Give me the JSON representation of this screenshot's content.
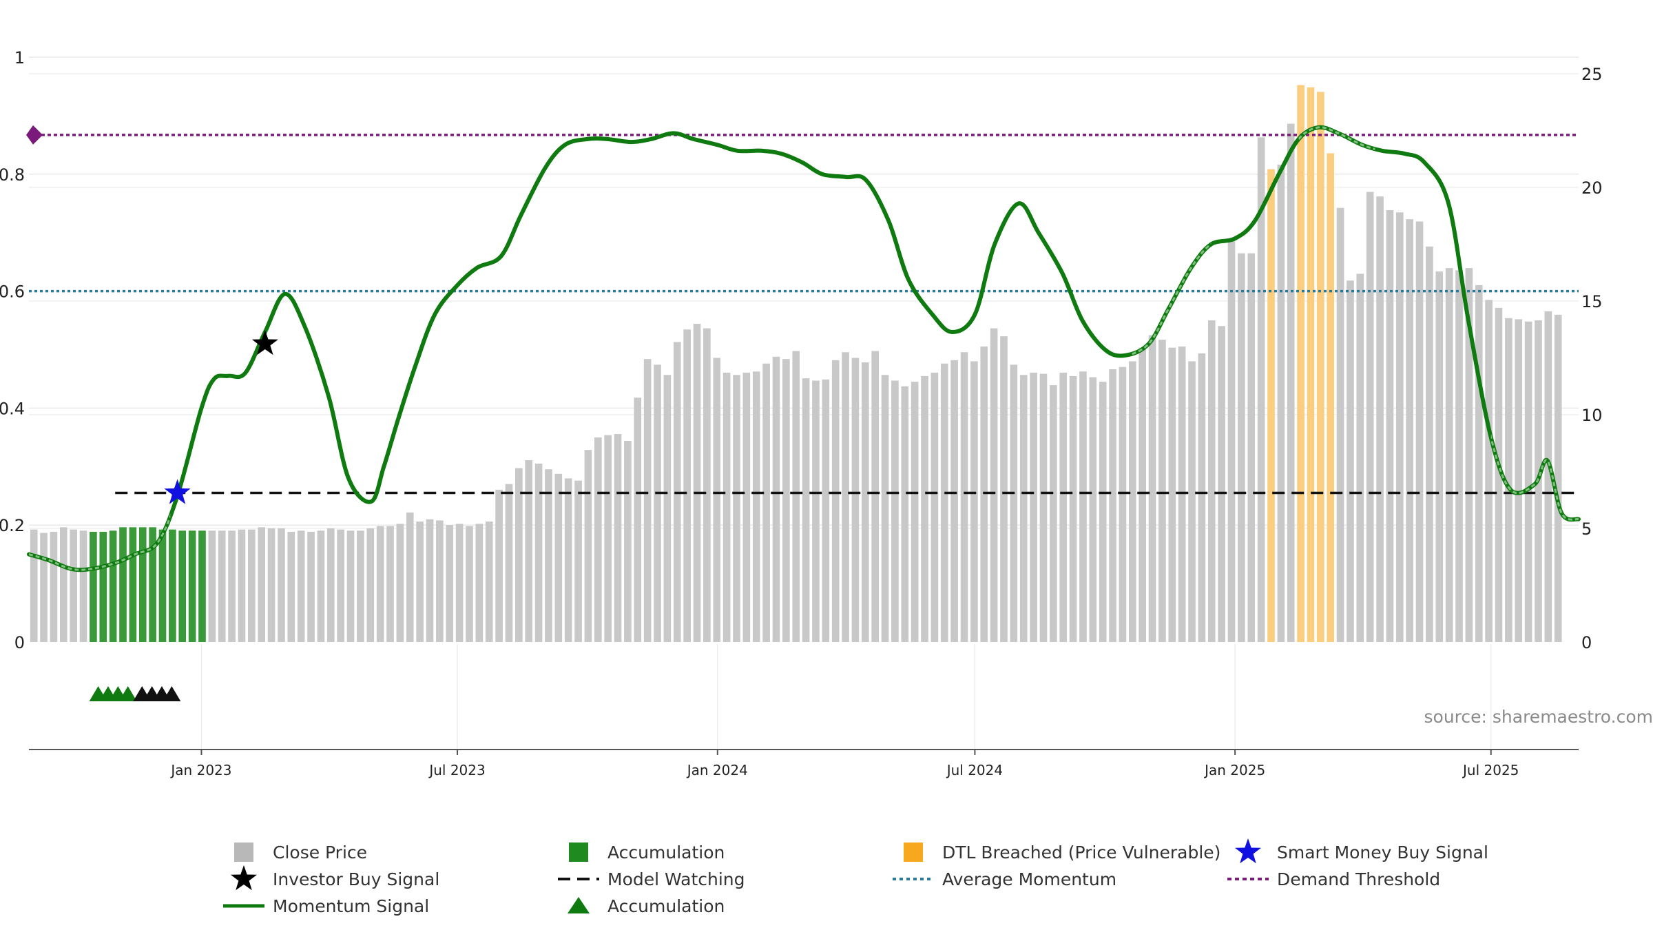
{
  "source": "source: sharemaestro.com",
  "colors": {
    "close": "#c8c8c8",
    "accumulation": "#3a9a3a",
    "dtl": "#fbcd7e",
    "momentum": "#0f7a0f",
    "average": "#2a7a9a",
    "demand": "#7a1a7a",
    "watching": "#111111",
    "smart_money": "#1010e0",
    "investor": "#000000"
  },
  "legend": [
    {
      "id": "close",
      "label": "Close Price"
    },
    {
      "id": "accumulation",
      "label": "Accumulation"
    },
    {
      "id": "dtl",
      "label": "DTL Breached (Price Vulnerable)"
    },
    {
      "id": "smart_money",
      "label": "Smart Money Buy Signal"
    },
    {
      "id": "investor",
      "label": "Investor Buy Signal"
    },
    {
      "id": "watching",
      "label": "Model Watching"
    },
    {
      "id": "average",
      "label": "Average Momentum"
    },
    {
      "id": "demand",
      "label": "Demand Threshold"
    },
    {
      "id": "momentum",
      "label": "Momentum Signal"
    },
    {
      "id": "acc_tri",
      "label": "Accumulation"
    }
  ],
  "chart_data": {
    "type": "bar",
    "x_range": [
      "2022-09-01",
      "2025-09-01"
    ],
    "x_ticks": [
      {
        "label": "Jan 2023",
        "date": "2023-01-01"
      },
      {
        "label": "Jul 2023",
        "date": "2023-07-01"
      },
      {
        "label": "Jan 2024",
        "date": "2024-01-01"
      },
      {
        "label": "Jul 2024",
        "date": "2024-07-01"
      },
      {
        "label": "Jan 2025",
        "date": "2025-01-01"
      },
      {
        "label": "Jul 2025",
        "date": "2025-07-01"
      }
    ],
    "y_left": {
      "range": [
        0,
        1
      ],
      "ticks": [
        "0",
        "0.2",
        "0.4",
        "0.6",
        "0.8",
        "1"
      ],
      "tick_values": [
        0,
        0.2,
        0.4,
        0.6,
        0.8,
        1
      ]
    },
    "y_right": {
      "range": [
        0,
        25
      ],
      "ticks": [
        "0",
        "5",
        "10",
        "15",
        "20",
        "25"
      ],
      "tick_values": [
        0,
        5,
        10,
        15,
        20,
        25
      ]
    },
    "close_price": {
      "name": "Close Price",
      "start": "2022-09-01",
      "step_days": 7,
      "values": [
        4.95,
        4.8,
        4.85,
        5.05,
        4.95,
        4.9,
        4.85,
        4.85,
        4.9,
        5.05,
        5.05,
        5.05,
        5.05,
        4.95,
        4.95,
        4.9,
        4.9,
        4.9,
        4.9,
        4.9,
        4.9,
        4.95,
        4.95,
        5.05,
        5.0,
        5.0,
        4.85,
        4.9,
        4.85,
        4.9,
        5.0,
        4.95,
        4.9,
        4.9,
        5.0,
        5.1,
        5.1,
        5.2,
        5.7,
        5.3,
        5.4,
        5.35,
        5.15,
        5.2,
        5.1,
        5.2,
        5.3,
        6.7,
        6.95,
        7.65,
        8.0,
        7.85,
        7.6,
        7.4,
        7.2,
        7.1,
        8.45,
        9.0,
        9.1,
        9.15,
        8.85,
        10.75,
        12.45,
        12.2,
        11.75,
        13.2,
        13.75,
        14.0,
        13.8,
        12.5,
        11.85,
        11.75,
        11.85,
        11.9,
        12.25,
        12.55,
        12.45,
        12.8,
        11.6,
        11.5,
        11.55,
        12.4,
        12.75,
        12.5,
        12.3,
        12.8,
        11.75,
        11.5,
        11.25,
        11.45,
        11.7,
        11.85,
        12.25,
        12.4,
        12.75,
        12.35,
        13.0,
        13.8,
        13.45,
        12.2,
        11.75,
        11.85,
        11.8,
        11.3,
        11.85,
        11.7,
        11.9,
        11.65,
        11.45,
        12.0,
        12.1,
        12.35,
        12.95,
        13.5,
        13.3,
        12.95,
        13.0,
        12.35,
        12.7,
        14.15,
        13.9,
        17.7,
        17.1,
        17.1,
        22.2,
        20.8,
        21.0,
        22.8,
        24.5,
        24.4,
        24.2,
        21.5,
        19.1,
        15.9,
        16.2,
        19.8,
        19.6,
        19.0,
        18.9,
        18.6,
        18.5,
        17.4,
        16.3,
        16.45,
        16.35,
        16.45,
        15.7,
        15.05,
        14.7,
        14.25,
        14.2,
        14.1,
        14.15,
        14.55,
        14.4
      ],
      "dtl_indices": [
        125,
        128,
        129,
        130,
        131
      ],
      "accumulation_indices": [
        6,
        7,
        8,
        9,
        10,
        11,
        12,
        13,
        14,
        15,
        16,
        17
      ]
    },
    "series": [
      {
        "name": "Momentum Signal",
        "x": [
          "2022-09-01",
          "2022-09-15",
          "2022-10-01",
          "2022-10-15",
          "2022-11-01",
          "2022-11-15",
          "2022-12-01",
          "2022-12-15",
          "2023-01-01",
          "2023-01-10",
          "2023-01-20",
          "2023-02-01",
          "2023-02-15",
          "2023-03-01",
          "2023-03-15",
          "2023-04-01",
          "2023-04-15",
          "2023-05-01",
          "2023-05-10",
          "2023-05-20",
          "2023-06-01",
          "2023-06-15",
          "2023-07-01",
          "2023-07-15",
          "2023-08-01",
          "2023-08-15",
          "2023-09-01",
          "2023-09-15",
          "2023-10-01",
          "2023-10-15",
          "2023-11-01",
          "2023-11-15",
          "2023-12-01",
          "2023-12-15",
          "2024-01-01",
          "2024-01-15",
          "2024-02-01",
          "2024-02-15",
          "2024-03-01",
          "2024-03-15",
          "2024-04-01",
          "2024-04-15",
          "2024-05-01",
          "2024-05-15",
          "2024-06-01",
          "2024-06-15",
          "2024-07-01",
          "2024-07-15",
          "2024-08-01",
          "2024-08-15",
          "2024-09-01",
          "2024-09-15",
          "2024-10-01",
          "2024-10-15",
          "2024-11-01",
          "2024-11-15",
          "2024-12-01",
          "2024-12-15",
          "2025-01-01",
          "2025-01-15",
          "2025-02-01",
          "2025-02-15",
          "2025-03-01",
          "2025-03-15",
          "2025-04-01",
          "2025-04-15",
          "2025-05-01",
          "2025-05-15",
          "2025-06-01",
          "2025-06-15",
          "2025-07-01",
          "2025-07-15",
          "2025-08-01",
          "2025-08-10",
          "2025-08-20",
          "2025-09-01"
        ],
        "values": [
          0.15,
          0.14,
          0.125,
          0.125,
          0.135,
          0.15,
          0.17,
          0.25,
          0.4,
          0.45,
          0.455,
          0.46,
          0.53,
          0.595,
          0.54,
          0.42,
          0.28,
          0.24,
          0.3,
          0.38,
          0.47,
          0.56,
          0.61,
          0.64,
          0.66,
          0.73,
          0.81,
          0.85,
          0.86,
          0.86,
          0.855,
          0.86,
          0.87,
          0.86,
          0.85,
          0.84,
          0.84,
          0.835,
          0.82,
          0.8,
          0.795,
          0.79,
          0.72,
          0.62,
          0.56,
          0.53,
          0.56,
          0.68,
          0.75,
          0.7,
          0.63,
          0.55,
          0.5,
          0.49,
          0.51,
          0.57,
          0.64,
          0.68,
          0.69,
          0.72,
          0.8,
          0.86,
          0.88,
          0.87,
          0.85,
          0.84,
          0.835,
          0.82,
          0.75,
          0.55,
          0.35,
          0.26,
          0.27,
          0.31,
          0.22,
          0.21
        ],
        "dim_ranges": [
          [
            "2022-09-01",
            "2022-12-10"
          ],
          [
            "2024-10-20",
            "2024-12-15"
          ],
          [
            "2025-02-15",
            "2025-04-10"
          ],
          [
            "2025-07-01",
            "2025-09-01"
          ]
        ]
      }
    ],
    "reference_lines": {
      "average_momentum": {
        "name": "Average Momentum",
        "value": 0.6
      },
      "demand_threshold": {
        "name": "Demand Threshold",
        "value": 0.867
      },
      "model_watching": {
        "name": "Model Watching",
        "value": 0.255,
        "start": "2022-11-01"
      }
    },
    "signals": {
      "smart_money": [
        {
          "x": "2022-12-15",
          "y": 0.255
        }
      ],
      "investor": [
        {
          "x": "2023-02-15",
          "y": 0.51
        }
      ],
      "accumulation_triangles_green": [
        "2022-10-20",
        "2022-10-27",
        "2022-11-03",
        "2022-11-10"
      ],
      "accumulation_triangles_black": [
        "2022-11-20",
        "2022-11-27",
        "2022-12-04",
        "2022-12-11"
      ]
    }
  }
}
